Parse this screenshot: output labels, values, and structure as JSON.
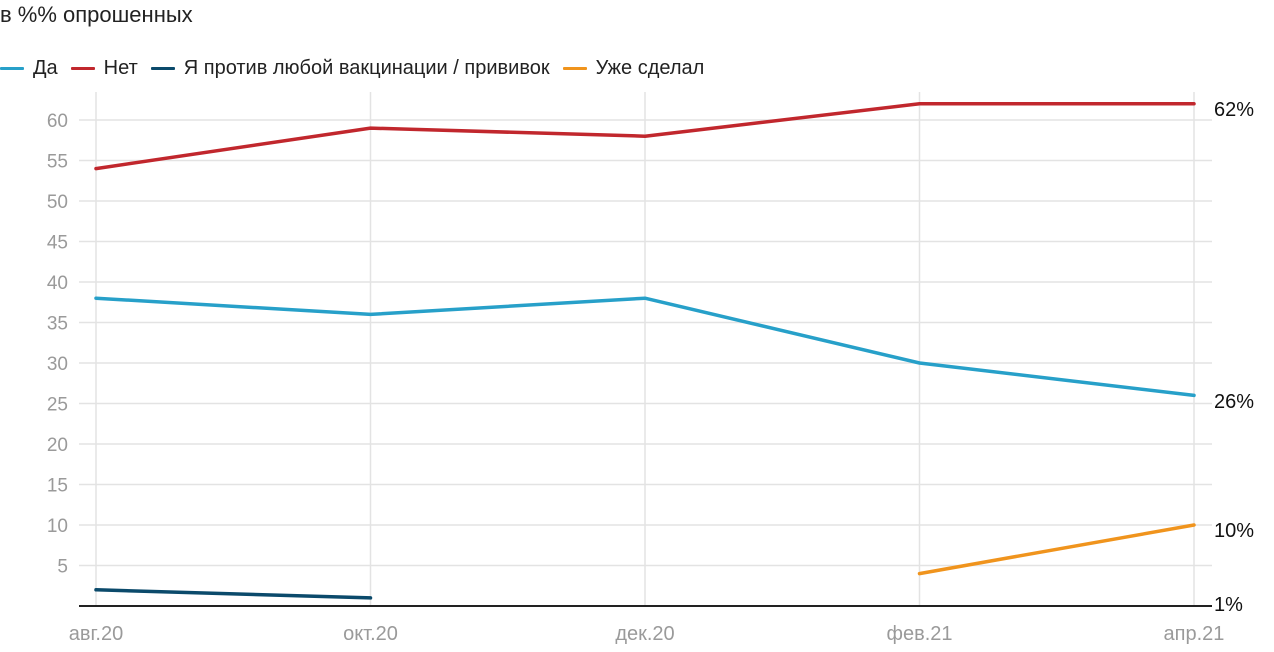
{
  "subtitle": "в %% опрошенных",
  "chart_data": {
    "type": "line",
    "title": "",
    "subtitle": "в %% опрошенных",
    "xlabel": "",
    "ylabel": "",
    "categories": [
      "авг.20",
      "окт.20",
      "дек.20",
      "фев.21",
      "апр.21"
    ],
    "ylim": [
      0,
      62
    ],
    "yticks": [
      5,
      10,
      15,
      20,
      25,
      30,
      35,
      40,
      45,
      50,
      55,
      60
    ],
    "grid": true,
    "legend_position": "top-left",
    "series": [
      {
        "name": "Да",
        "color": "#27a0c9",
        "values": [
          38,
          36,
          38,
          30,
          26
        ],
        "end_label": "26%"
      },
      {
        "name": "Нет",
        "color": "#c1272d",
        "values": [
          54,
          59,
          58,
          62,
          62
        ],
        "end_label": "62%"
      },
      {
        "name": "Я против любой вакцинации / прививок",
        "color": "#0b4a6b",
        "values": [
          2,
          1,
          null,
          null,
          null
        ],
        "end_label": "1%"
      },
      {
        "name": "Уже сделал",
        "color": "#f0941d",
        "values": [
          null,
          null,
          null,
          4,
          10
        ],
        "end_label": "10%"
      }
    ]
  }
}
